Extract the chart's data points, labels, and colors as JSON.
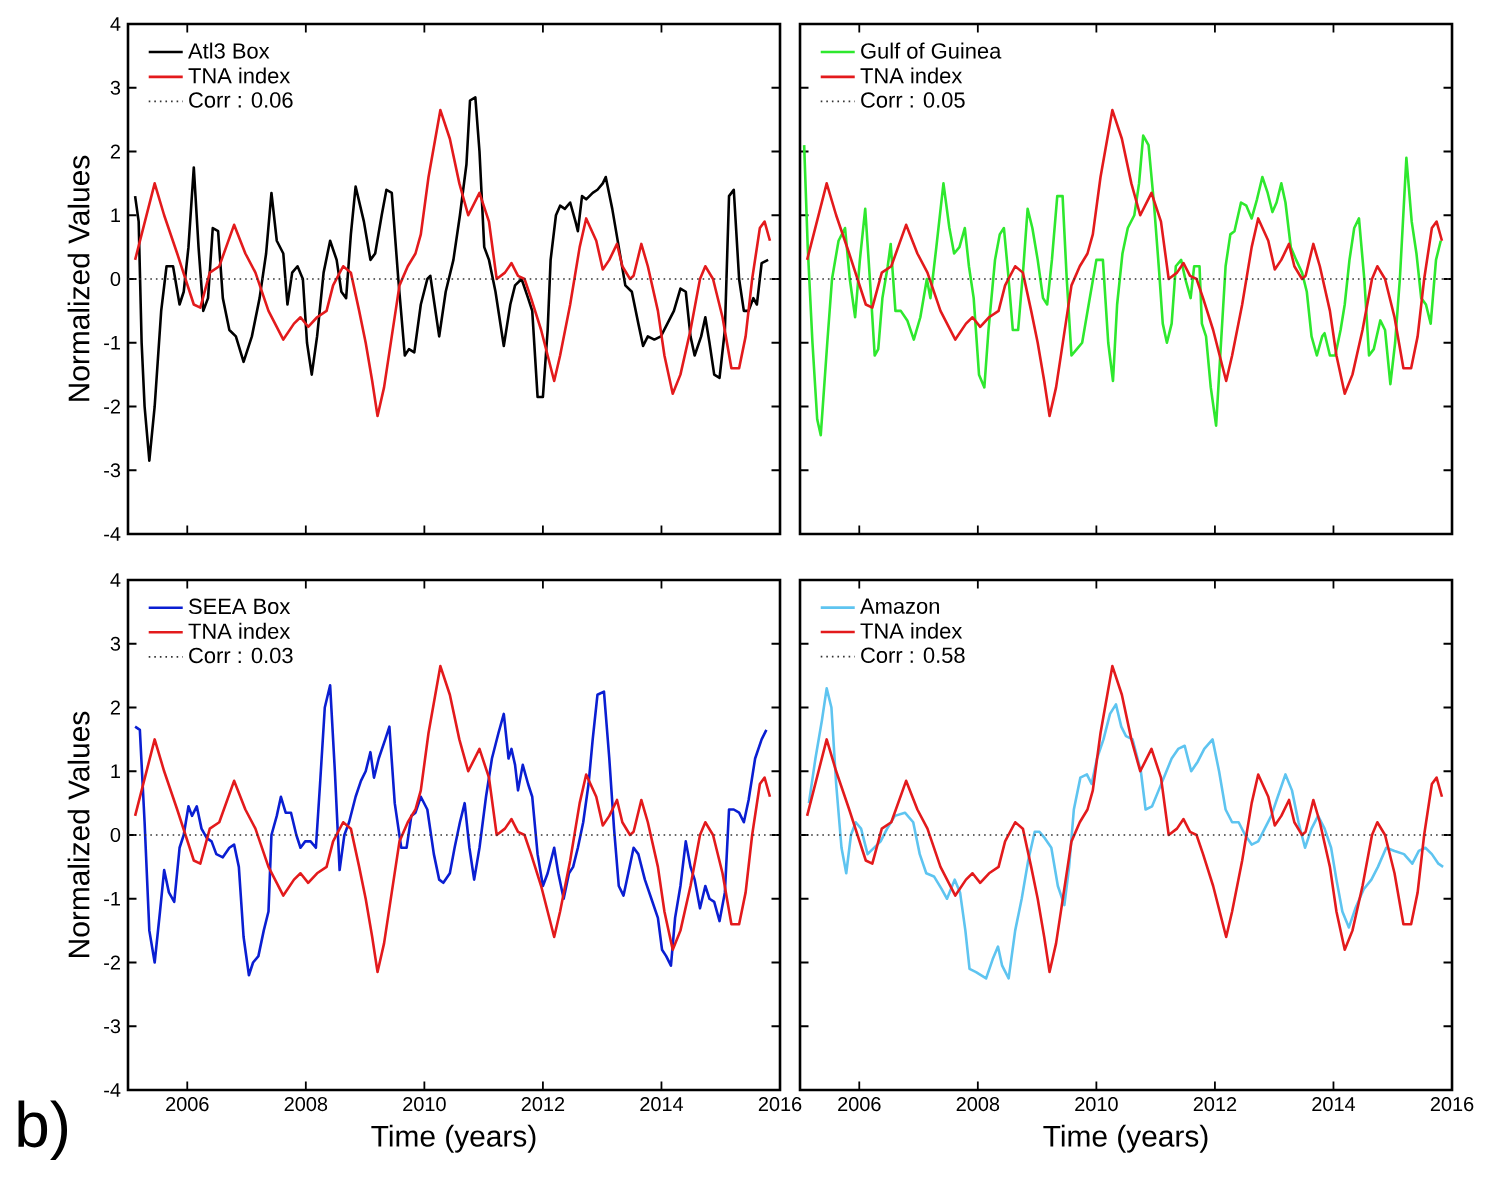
{
  "chart_data": [
    {
      "type": "line",
      "ylabel": "Normalized Values",
      "xlim": [
        2005,
        2016
      ],
      "ylim": [
        -4,
        4
      ],
      "xticks": [
        2006,
        2008,
        2010,
        2012,
        2014,
        2016
      ],
      "yticks": [
        -4,
        -3,
        -2,
        -1,
        0,
        1,
        2,
        3,
        4
      ],
      "tick_labels": "y",
      "legend": "top left",
      "series": [
        {
          "name": "Corr : 0.06",
          "color": "#333333",
          "line_style": "dotted",
          "x": [
            2005,
            2016
          ],
          "values": [
            0,
            0
          ]
        },
        {
          "name": "Atl3 Box",
          "color": "#000000",
          "x": [
            2005.12,
            2005.18,
            2005.23,
            2005.28,
            2005.36,
            2005.45,
            2005.56,
            2005.65,
            2005.76,
            2005.87,
            2005.94,
            2006.02,
            2006.11,
            2006.19,
            2006.27,
            2006.35,
            2006.43,
            2006.52,
            2006.6,
            2006.71,
            2006.82,
            2006.95,
            2007.09,
            2007.22,
            2007.33,
            2007.42,
            2007.51,
            2007.62,
            2007.69,
            2007.77,
            2007.86,
            2007.95,
            2008.02,
            2008.1,
            2008.19,
            2008.3,
            2008.41,
            2008.52,
            2008.6,
            2008.68,
            2008.76,
            2008.84,
            2008.98,
            2009.09,
            2009.17,
            2009.28,
            2009.36,
            2009.45,
            2009.56,
            2009.67,
            2009.74,
            2009.83,
            2009.94,
            2010.05,
            2010.1,
            2010.25,
            2010.36,
            2010.49,
            2010.6,
            2010.71,
            2010.77,
            2010.86,
            2010.93,
            2011.01,
            2011.09,
            2011.2,
            2011.34,
            2011.45,
            2011.53,
            2011.64,
            2011.75,
            2011.82,
            2011.91,
            2012.0,
            2012.08,
            2012.13,
            2012.22,
            2012.29,
            2012.37,
            2012.46,
            2012.55,
            2012.59,
            2012.66,
            2012.73,
            2012.84,
            2012.92,
            2013.01,
            2013.06,
            2013.17,
            2013.28,
            2013.39,
            2013.5,
            2013.61,
            2013.69,
            2013.77,
            2013.88,
            2013.99,
            2014.1,
            2014.21,
            2014.32,
            2014.41,
            2014.49,
            2014.56,
            2014.67,
            2014.74,
            2014.81,
            2014.89,
            2014.98,
            2015.07,
            2015.14,
            2015.22,
            2015.31,
            2015.39,
            2015.47,
            2015.55,
            2015.61,
            2015.69,
            2015.8
          ],
          "values": [
            1.3,
            0.9,
            -1.0,
            -2.0,
            -2.85,
            -2.0,
            -0.5,
            0.2,
            0.2,
            -0.4,
            -0.2,
            0.5,
            1.75,
            0.5,
            -0.5,
            -0.3,
            0.8,
            0.75,
            -0.3,
            -0.8,
            -0.9,
            -1.3,
            -0.9,
            -0.3,
            0.4,
            1.35,
            0.6,
            0.4,
            -0.4,
            0.1,
            0.2,
            0.0,
            -1.0,
            -1.5,
            -0.9,
            0.1,
            0.6,
            0.3,
            -0.2,
            -0.3,
            0.7,
            1.45,
            0.9,
            0.3,
            0.4,
            1.0,
            1.4,
            1.35,
            0.0,
            -1.2,
            -1.1,
            -1.15,
            -0.4,
            0.0,
            0.05,
            -0.9,
            -0.2,
            0.3,
            1.0,
            1.8,
            2.8,
            2.85,
            2.0,
            0.5,
            0.3,
            -0.2,
            -1.05,
            -0.4,
            -0.1,
            0.0,
            -0.3,
            -0.5,
            -1.85,
            -1.85,
            -0.8,
            0.3,
            1.0,
            1.15,
            1.1,
            1.2,
            0.9,
            0.75,
            1.3,
            1.25,
            1.35,
            1.4,
            1.5,
            1.6,
            1.1,
            0.5,
            -0.1,
            -0.2,
            -0.7,
            -1.05,
            -0.9,
            -0.95,
            -0.9,
            -0.7,
            -0.5,
            -0.15,
            -0.2,
            -0.9,
            -1.2,
            -0.9,
            -0.6,
            -1.0,
            -1.5,
            -1.55,
            -0.8,
            1.3,
            1.4,
            0.0,
            -0.5,
            -0.5,
            -0.3,
            -0.4,
            0.25,
            0.3
          ]
        },
        {
          "name": "TNA index",
          "color": "#e31a1c",
          "x": [
            2005.12,
            2005.45,
            2005.61,
            2005.83,
            2006.11,
            2006.22,
            2006.38,
            2006.54,
            2006.79,
            2006.98,
            2007.15,
            2007.37,
            2007.62,
            2007.8,
            2007.91,
            2008.04,
            2008.19,
            2008.35,
            2008.46,
            2008.63,
            2008.76,
            2008.9,
            2009.01,
            2009.12,
            2009.21,
            2009.32,
            2009.45,
            2009.58,
            2009.72,
            2009.85,
            2009.94,
            2010.07,
            2010.27,
            2010.43,
            2010.59,
            2010.74,
            2010.93,
            2011.09,
            2011.22,
            2011.36,
            2011.47,
            2011.58,
            2011.69,
            2011.8,
            2011.97,
            2012.19,
            2012.29,
            2012.46,
            2012.62,
            2012.73,
            2012.9,
            2013.01,
            2013.12,
            2013.25,
            2013.34,
            2013.47,
            2013.53,
            2013.66,
            2013.77,
            2013.94,
            2014.05,
            2014.19,
            2014.32,
            2014.49,
            2014.65,
            2014.74,
            2014.87,
            2015.03,
            2015.18,
            2015.31,
            2015.42,
            2015.53,
            2015.66,
            2015.74,
            2015.83
          ],
          "values": [
            0.3,
            1.5,
            1.0,
            0.4,
            -0.4,
            -0.45,
            0.1,
            0.2,
            0.85,
            0.4,
            0.1,
            -0.5,
            -0.95,
            -0.7,
            -0.6,
            -0.75,
            -0.6,
            -0.5,
            -0.1,
            0.2,
            0.1,
            -0.5,
            -1.0,
            -1.6,
            -2.15,
            -1.7,
            -0.9,
            -0.1,
            0.2,
            0.4,
            0.7,
            1.6,
            2.65,
            2.2,
            1.5,
            1.0,
            1.35,
            0.9,
            0.0,
            0.1,
            0.25,
            0.05,
            0.0,
            -0.3,
            -0.8,
            -1.6,
            -1.2,
            -0.4,
            0.5,
            0.95,
            0.6,
            0.15,
            0.3,
            0.55,
            0.2,
            0.0,
            0.05,
            0.55,
            0.2,
            -0.5,
            -1.2,
            -1.8,
            -1.5,
            -0.8,
            0.0,
            0.2,
            0.0,
            -0.6,
            -1.4,
            -1.4,
            -0.9,
            0.0,
            0.8,
            0.9,
            0.6
          ]
        }
      ]
    },
    {
      "type": "line",
      "xlim": [
        2005,
        2016
      ],
      "ylim": [
        -4,
        4
      ],
      "xticks": [
        2006,
        2008,
        2010,
        2012,
        2014,
        2016
      ],
      "yticks": [
        -4,
        -3,
        -2,
        -1,
        0,
        1,
        2,
        3,
        4
      ],
      "tick_labels": false,
      "legend": "top left",
      "series": [
        {
          "name": "Corr : 0.05",
          "color": "#333333",
          "line_style": "dotted",
          "x": [
            2005,
            2016
          ],
          "values": [
            0,
            0
          ]
        },
        {
          "name": "Gulf of Guinea",
          "color": "#2ee82e",
          "x": [
            2005.07,
            2005.13,
            2005.21,
            2005.29,
            2005.35,
            2005.46,
            2005.54,
            2005.65,
            2005.76,
            2005.84,
            2005.93,
            2006.01,
            2006.1,
            2006.2,
            2006.26,
            2006.32,
            2006.39,
            2006.48,
            2006.53,
            2006.61,
            2006.7,
            2006.81,
            2006.92,
            2007.03,
            2007.14,
            2007.2,
            2007.3,
            2007.42,
            2007.52,
            2007.6,
            2007.69,
            2007.78,
            2007.85,
            2007.93,
            2008.02,
            2008.11,
            2008.18,
            2008.29,
            2008.37,
            2008.44,
            2008.51,
            2008.59,
            2008.68,
            2008.77,
            2008.84,
            2008.92,
            2009.01,
            2009.1,
            2009.17,
            2009.25,
            2009.34,
            2009.43,
            2009.5,
            2009.58,
            2009.67,
            2009.76,
            2009.87,
            2010.0,
            2010.11,
            2010.2,
            2010.28,
            2010.35,
            2010.44,
            2010.53,
            2010.64,
            2010.72,
            2010.79,
            2010.88,
            2010.97,
            2011.06,
            2011.12,
            2011.19,
            2011.27,
            2011.34,
            2011.43,
            2011.5,
            2011.59,
            2011.65,
            2011.74,
            2011.78,
            2011.85,
            2011.93,
            2012.02,
            2012.09,
            2012.18,
            2012.26,
            2012.33,
            2012.44,
            2012.53,
            2012.62,
            2012.71,
            2012.8,
            2012.89,
            2012.97,
            2013.04,
            2013.12,
            2013.19,
            2013.28,
            2013.37,
            2013.47,
            2013.55,
            2013.63,
            2013.72,
            2013.81,
            2013.85,
            2013.94,
            2014.03,
            2014.12,
            2014.19,
            2014.27,
            2014.35,
            2014.43,
            2014.52,
            2014.6,
            2014.68,
            2014.79,
            2014.87,
            2014.96,
            2015.04,
            2015.12,
            2015.23,
            2015.32,
            2015.4,
            2015.48,
            2015.56,
            2015.64,
            2015.73,
            2015.81
          ],
          "values": [
            2.1,
            0.5,
            -1.0,
            -2.2,
            -2.45,
            -1.0,
            0.0,
            0.6,
            0.8,
            0.0,
            -0.6,
            0.3,
            1.1,
            -0.3,
            -1.2,
            -1.1,
            -0.3,
            0.2,
            0.55,
            -0.5,
            -0.5,
            -0.65,
            -0.95,
            -0.6,
            0.0,
            -0.3,
            0.5,
            1.5,
            0.8,
            0.4,
            0.5,
            0.8,
            0.2,
            -0.3,
            -1.5,
            -1.7,
            -0.8,
            0.3,
            0.7,
            0.8,
            0.1,
            -0.8,
            -0.8,
            0.2,
            1.1,
            0.8,
            0.3,
            -0.3,
            -0.4,
            0.3,
            1.3,
            1.3,
            0.0,
            -1.2,
            -1.1,
            -1.0,
            -0.4,
            0.3,
            0.3,
            -1.0,
            -1.6,
            -0.4,
            0.4,
            0.8,
            1.0,
            1.5,
            2.25,
            2.1,
            1.2,
            0.1,
            -0.7,
            -1.0,
            -0.7,
            0.2,
            0.3,
            0.0,
            -0.3,
            0.2,
            0.2,
            -0.7,
            -0.9,
            -1.7,
            -2.3,
            -1.2,
            0.2,
            0.7,
            0.75,
            1.2,
            1.15,
            0.95,
            1.25,
            1.6,
            1.35,
            1.05,
            1.2,
            1.5,
            1.2,
            0.5,
            0.3,
            0.1,
            -0.2,
            -0.9,
            -1.2,
            -0.9,
            -0.85,
            -1.2,
            -1.2,
            -0.8,
            -0.4,
            0.3,
            0.8,
            0.95,
            0.0,
            -1.2,
            -1.1,
            -0.65,
            -0.8,
            -1.65,
            -1.0,
            0.0,
            1.9,
            0.9,
            0.4,
            -0.3,
            -0.4,
            -0.7,
            0.3,
            0.6
          ]
        },
        {
          "name": "TNA index",
          "color": "#e31a1c",
          "x": [
            2005.12,
            2005.45,
            2005.61,
            2005.83,
            2006.11,
            2006.22,
            2006.38,
            2006.54,
            2006.79,
            2006.98,
            2007.15,
            2007.37,
            2007.62,
            2007.8,
            2007.91,
            2008.04,
            2008.19,
            2008.35,
            2008.46,
            2008.63,
            2008.76,
            2008.9,
            2009.01,
            2009.12,
            2009.21,
            2009.32,
            2009.45,
            2009.58,
            2009.72,
            2009.85,
            2009.94,
            2010.07,
            2010.27,
            2010.43,
            2010.59,
            2010.74,
            2010.93,
            2011.09,
            2011.22,
            2011.36,
            2011.47,
            2011.58,
            2011.69,
            2011.8,
            2011.97,
            2012.19,
            2012.29,
            2012.46,
            2012.62,
            2012.73,
            2012.9,
            2013.01,
            2013.12,
            2013.25,
            2013.34,
            2013.47,
            2013.53,
            2013.66,
            2013.77,
            2013.94,
            2014.05,
            2014.19,
            2014.32,
            2014.49,
            2014.65,
            2014.74,
            2014.87,
            2015.03,
            2015.18,
            2015.31,
            2015.42,
            2015.53,
            2015.66,
            2015.74,
            2015.83
          ],
          "values": [
            0.3,
            1.5,
            1.0,
            0.4,
            -0.4,
            -0.45,
            0.1,
            0.2,
            0.85,
            0.4,
            0.1,
            -0.5,
            -0.95,
            -0.7,
            -0.6,
            -0.75,
            -0.6,
            -0.5,
            -0.1,
            0.2,
            0.1,
            -0.5,
            -1.0,
            -1.6,
            -2.15,
            -1.7,
            -0.9,
            -0.1,
            0.2,
            0.4,
            0.7,
            1.6,
            2.65,
            2.2,
            1.5,
            1.0,
            1.35,
            0.9,
            0.0,
            0.1,
            0.25,
            0.05,
            0.0,
            -0.3,
            -0.8,
            -1.6,
            -1.2,
            -0.4,
            0.5,
            0.95,
            0.6,
            0.15,
            0.3,
            0.55,
            0.2,
            0.0,
            0.05,
            0.55,
            0.2,
            -0.5,
            -1.2,
            -1.8,
            -1.5,
            -0.8,
            0.0,
            0.2,
            0.0,
            -0.6,
            -1.4,
            -1.4,
            -0.9,
            0.0,
            0.8,
            0.9,
            0.6
          ]
        }
      ]
    },
    {
      "type": "line",
      "xlabel": "Time (years)",
      "ylabel": "Normalized Values",
      "xlim": [
        2005,
        2016
      ],
      "ylim": [
        -4,
        4
      ],
      "xticks": [
        2006,
        2008,
        2010,
        2012,
        2014,
        2016
      ],
      "yticks": [
        -4,
        -3,
        -2,
        -1,
        0,
        1,
        2,
        3,
        4
      ],
      "legend": "top left",
      "annotations": [
        "b)"
      ],
      "series": [
        {
          "name": "Corr : 0.03",
          "color": "#333333",
          "line_style": "dotted",
          "x": [
            2005,
            2016
          ],
          "values": [
            0,
            0
          ]
        },
        {
          "name": "SEEA Box",
          "color": "#0a1ed2",
          "x": [
            2005.12,
            2005.2,
            2005.28,
            2005.36,
            2005.45,
            2005.54,
            2005.61,
            2005.69,
            2005.78,
            2005.87,
            2005.94,
            2006.02,
            2006.08,
            2006.16,
            2006.24,
            2006.33,
            2006.41,
            2006.49,
            2006.6,
            2006.71,
            2006.79,
            2006.87,
            2006.95,
            2007.04,
            2007.11,
            2007.2,
            2007.29,
            2007.37,
            2007.42,
            2007.51,
            2007.58,
            2007.66,
            2007.75,
            2007.84,
            2007.91,
            2007.99,
            2008.08,
            2008.17,
            2008.24,
            2008.32,
            2008.41,
            2008.49,
            2008.57,
            2008.65,
            2008.73,
            2008.84,
            2008.93,
            2009.01,
            2009.09,
            2009.15,
            2009.23,
            2009.34,
            2009.41,
            2009.5,
            2009.61,
            2009.7,
            2009.78,
            2009.85,
            2009.94,
            2010.05,
            2010.16,
            2010.25,
            2010.32,
            2010.43,
            2010.51,
            2010.6,
            2010.68,
            2010.76,
            2010.84,
            2010.93,
            2011.04,
            2011.14,
            2011.25,
            2011.34,
            2011.42,
            2011.47,
            2011.53,
            2011.58,
            2011.66,
            2011.75,
            2011.82,
            2011.91,
            2012.0,
            2012.08,
            2012.19,
            2012.26,
            2012.35,
            2012.44,
            2012.51,
            2012.59,
            2012.68,
            2012.77,
            2012.84,
            2012.92,
            2013.03,
            2013.12,
            2013.2,
            2013.28,
            2013.36,
            2013.44,
            2013.53,
            2013.61,
            2013.72,
            2013.83,
            2013.94,
            2014.01,
            2014.08,
            2014.16,
            2014.23,
            2014.32,
            2014.41,
            2014.49,
            2014.56,
            2014.65,
            2014.74,
            2014.81,
            2014.89,
            2014.98,
            2015.07,
            2015.14,
            2015.22,
            2015.31,
            2015.39,
            2015.47,
            2015.58,
            2015.69,
            2015.77
          ],
          "values": [
            1.7,
            1.65,
            0.2,
            -1.5,
            -2.0,
            -1.2,
            -0.55,
            -0.9,
            -1.05,
            -0.2,
            0.0,
            0.45,
            0.3,
            0.45,
            0.1,
            -0.05,
            -0.1,
            -0.3,
            -0.35,
            -0.2,
            -0.15,
            -0.5,
            -1.6,
            -2.2,
            -2.0,
            -1.9,
            -1.5,
            -1.2,
            0.0,
            0.3,
            0.6,
            0.35,
            0.35,
            0.0,
            -0.2,
            -0.1,
            -0.1,
            -0.2,
            0.8,
            2.0,
            2.35,
            1.0,
            -0.55,
            0.0,
            0.2,
            0.6,
            0.85,
            1.0,
            1.3,
            0.9,
            1.2,
            1.5,
            1.7,
            0.5,
            -0.2,
            -0.2,
            0.3,
            0.35,
            0.6,
            0.4,
            -0.3,
            -0.7,
            -0.75,
            -0.6,
            -0.2,
            0.2,
            0.5,
            -0.2,
            -0.7,
            -0.2,
            0.6,
            1.2,
            1.6,
            1.9,
            1.2,
            1.35,
            1.1,
            0.7,
            1.1,
            0.8,
            0.6,
            -0.3,
            -0.8,
            -0.6,
            -0.2,
            -0.6,
            -1.0,
            -0.6,
            -0.5,
            -0.2,
            0.2,
            0.8,
            1.5,
            2.2,
            2.25,
            1.2,
            0.1,
            -0.8,
            -0.95,
            -0.6,
            -0.2,
            -0.3,
            -0.7,
            -1.0,
            -1.3,
            -1.8,
            -1.9,
            -2.05,
            -1.3,
            -0.8,
            -0.1,
            -0.5,
            -0.7,
            -1.15,
            -0.8,
            -1.0,
            -1.05,
            -1.35,
            -0.9,
            0.4,
            0.4,
            0.35,
            0.2,
            0.55,
            1.2,
            1.5,
            1.65
          ]
        },
        {
          "name": "TNA index",
          "color": "#e31a1c",
          "x": [
            2005.12,
            2005.45,
            2005.61,
            2005.83,
            2006.11,
            2006.22,
            2006.38,
            2006.54,
            2006.79,
            2006.98,
            2007.15,
            2007.37,
            2007.62,
            2007.8,
            2007.91,
            2008.04,
            2008.19,
            2008.35,
            2008.46,
            2008.63,
            2008.76,
            2008.9,
            2009.01,
            2009.12,
            2009.21,
            2009.32,
            2009.45,
            2009.58,
            2009.72,
            2009.85,
            2009.94,
            2010.07,
            2010.27,
            2010.43,
            2010.59,
            2010.74,
            2010.93,
            2011.09,
            2011.22,
            2011.36,
            2011.47,
            2011.58,
            2011.69,
            2011.8,
            2011.97,
            2012.19,
            2012.29,
            2012.46,
            2012.62,
            2012.73,
            2012.9,
            2013.01,
            2013.12,
            2013.25,
            2013.34,
            2013.47,
            2013.53,
            2013.66,
            2013.77,
            2013.94,
            2014.05,
            2014.19,
            2014.32,
            2014.49,
            2014.65,
            2014.74,
            2014.87,
            2015.03,
            2015.18,
            2015.31,
            2015.42,
            2015.53,
            2015.66,
            2015.74,
            2015.83
          ],
          "values": [
            0.3,
            1.5,
            1.0,
            0.4,
            -0.4,
            -0.45,
            0.1,
            0.2,
            0.85,
            0.4,
            0.1,
            -0.5,
            -0.95,
            -0.7,
            -0.6,
            -0.75,
            -0.6,
            -0.5,
            -0.1,
            0.2,
            0.1,
            -0.5,
            -1.0,
            -1.6,
            -2.15,
            -1.7,
            -0.9,
            -0.1,
            0.2,
            0.4,
            0.7,
            1.6,
            2.65,
            2.2,
            1.5,
            1.0,
            1.35,
            0.9,
            0.0,
            0.1,
            0.25,
            0.05,
            0.0,
            -0.3,
            -0.8,
            -1.6,
            -1.2,
            -0.4,
            0.5,
            0.95,
            0.6,
            0.15,
            0.3,
            0.55,
            0.2,
            0.0,
            0.05,
            0.55,
            0.2,
            -0.5,
            -1.2,
            -1.8,
            -1.5,
            -0.8,
            0.0,
            0.2,
            0.0,
            -0.6,
            -1.4,
            -1.4,
            -0.9,
            0.0,
            0.8,
            0.9,
            0.6
          ]
        }
      ]
    },
    {
      "type": "line",
      "xlabel": "Time (years)",
      "xlim": [
        2005,
        2016
      ],
      "ylim": [
        -4,
        4
      ],
      "xticks": [
        2006,
        2008,
        2010,
        2012,
        2014,
        2016
      ],
      "yticks": [
        -4,
        -3,
        -2,
        -1,
        0,
        1,
        2,
        3,
        4
      ],
      "tick_labels": "x",
      "legend": "top left",
      "series": [
        {
          "name": "Corr : 0.58",
          "color": "#333333",
          "line_style": "dotted",
          "x": [
            2005,
            2016
          ],
          "values": [
            0,
            0
          ]
        },
        {
          "name": "Amazon",
          "color": "#5ec4f0",
          "x": [
            2005.15,
            2005.26,
            2005.37,
            2005.45,
            2005.53,
            2005.61,
            2005.7,
            2005.78,
            2005.86,
            2005.94,
            2006.03,
            2006.14,
            2006.25,
            2006.36,
            2006.47,
            2006.6,
            2006.77,
            2006.91,
            2007.02,
            2007.13,
            2007.26,
            2007.39,
            2007.48,
            2007.61,
            2007.7,
            2007.79,
            2007.86,
            2007.97,
            2008.14,
            2008.25,
            2008.34,
            2008.41,
            2008.52,
            2008.63,
            2008.74,
            2008.85,
            2008.96,
            2009.04,
            2009.13,
            2009.24,
            2009.35,
            2009.46,
            2009.54,
            2009.62,
            2009.73,
            2009.84,
            2009.92,
            2010.01,
            2010.12,
            2010.23,
            2010.33,
            2010.42,
            2010.5,
            2010.61,
            2010.75,
            2010.83,
            2010.94,
            2011.05,
            2011.16,
            2011.27,
            2011.38,
            2011.49,
            2011.6,
            2011.71,
            2011.82,
            2011.96,
            2012.07,
            2012.18,
            2012.29,
            2012.4,
            2012.51,
            2012.62,
            2012.73,
            2012.84,
            2012.95,
            2013.06,
            2013.19,
            2013.3,
            2013.41,
            2013.52,
            2013.63,
            2013.74,
            2013.85,
            2013.96,
            2014.05,
            2014.15,
            2014.26,
            2014.37,
            2014.51,
            2014.64,
            2014.75,
            2014.89,
            2015.03,
            2015.19,
            2015.33,
            2015.44,
            2015.55,
            2015.66,
            2015.77,
            2015.85
          ],
          "values": [
            0.5,
            1.2,
            1.8,
            2.3,
            2.0,
            0.8,
            -0.2,
            -0.6,
            0.0,
            0.2,
            0.1,
            -0.3,
            -0.2,
            -0.1,
            0.1,
            0.3,
            0.35,
            0.2,
            -0.3,
            -0.6,
            -0.65,
            -0.85,
            -1.0,
            -0.7,
            -0.9,
            -1.5,
            -2.1,
            -2.15,
            -2.25,
            -1.95,
            -1.75,
            -2.05,
            -2.25,
            -1.5,
            -1.0,
            -0.4,
            0.05,
            0.05,
            -0.05,
            -0.2,
            -0.8,
            -1.1,
            -0.5,
            0.4,
            0.9,
            0.95,
            0.8,
            1.2,
            1.5,
            1.9,
            2.05,
            1.7,
            1.55,
            1.5,
            1.0,
            0.4,
            0.45,
            0.7,
            0.95,
            1.2,
            1.35,
            1.4,
            1.0,
            1.15,
            1.35,
            1.5,
            1.0,
            0.4,
            0.2,
            0.2,
            0.0,
            -0.15,
            -0.1,
            0.1,
            0.3,
            0.6,
            0.95,
            0.7,
            0.2,
            -0.2,
            0.1,
            0.3,
            0.1,
            -0.2,
            -0.7,
            -1.2,
            -1.45,
            -1.15,
            -0.85,
            -0.7,
            -0.5,
            -0.2,
            -0.25,
            -0.3,
            -0.45,
            -0.25,
            -0.2,
            -0.3,
            -0.45,
            -0.5
          ]
        },
        {
          "name": "TNA index",
          "color": "#e31a1c",
          "x": [
            2005.12,
            2005.45,
            2005.61,
            2005.83,
            2006.11,
            2006.22,
            2006.38,
            2006.54,
            2006.79,
            2006.98,
            2007.15,
            2007.37,
            2007.62,
            2007.8,
            2007.91,
            2008.04,
            2008.19,
            2008.35,
            2008.46,
            2008.63,
            2008.76,
            2008.9,
            2009.01,
            2009.12,
            2009.21,
            2009.32,
            2009.45,
            2009.58,
            2009.72,
            2009.85,
            2009.94,
            2010.07,
            2010.27,
            2010.43,
            2010.59,
            2010.74,
            2010.93,
            2011.09,
            2011.22,
            2011.36,
            2011.47,
            2011.58,
            2011.69,
            2011.8,
            2011.97,
            2012.19,
            2012.29,
            2012.46,
            2012.62,
            2012.73,
            2012.9,
            2013.01,
            2013.12,
            2013.25,
            2013.34,
            2013.47,
            2013.53,
            2013.66,
            2013.77,
            2013.94,
            2014.05,
            2014.19,
            2014.32,
            2014.49,
            2014.65,
            2014.74,
            2014.87,
            2015.03,
            2015.18,
            2015.31,
            2015.42,
            2015.53,
            2015.66,
            2015.74,
            2015.83
          ],
          "values": [
            0.3,
            1.5,
            1.0,
            0.4,
            -0.4,
            -0.45,
            0.1,
            0.2,
            0.85,
            0.4,
            0.1,
            -0.5,
            -0.95,
            -0.7,
            -0.6,
            -0.75,
            -0.6,
            -0.5,
            -0.1,
            0.2,
            0.1,
            -0.5,
            -1.0,
            -1.6,
            -2.15,
            -1.7,
            -0.9,
            -0.1,
            0.2,
            0.4,
            0.7,
            1.6,
            2.65,
            2.2,
            1.5,
            1.0,
            1.35,
            0.9,
            0.0,
            0.1,
            0.25,
            0.05,
            0.0,
            -0.3,
            -0.8,
            -1.6,
            -1.2,
            -0.4,
            0.5,
            0.95,
            0.6,
            0.15,
            0.3,
            0.55,
            0.2,
            0.0,
            0.05,
            0.55,
            0.2,
            -0.5,
            -1.2,
            -1.8,
            -1.5,
            -0.8,
            0.0,
            0.2,
            0.0,
            -0.6,
            -1.4,
            -1.4,
            -0.9,
            0.0,
            0.8,
            0.9,
            0.6
          ]
        }
      ]
    }
  ]
}
